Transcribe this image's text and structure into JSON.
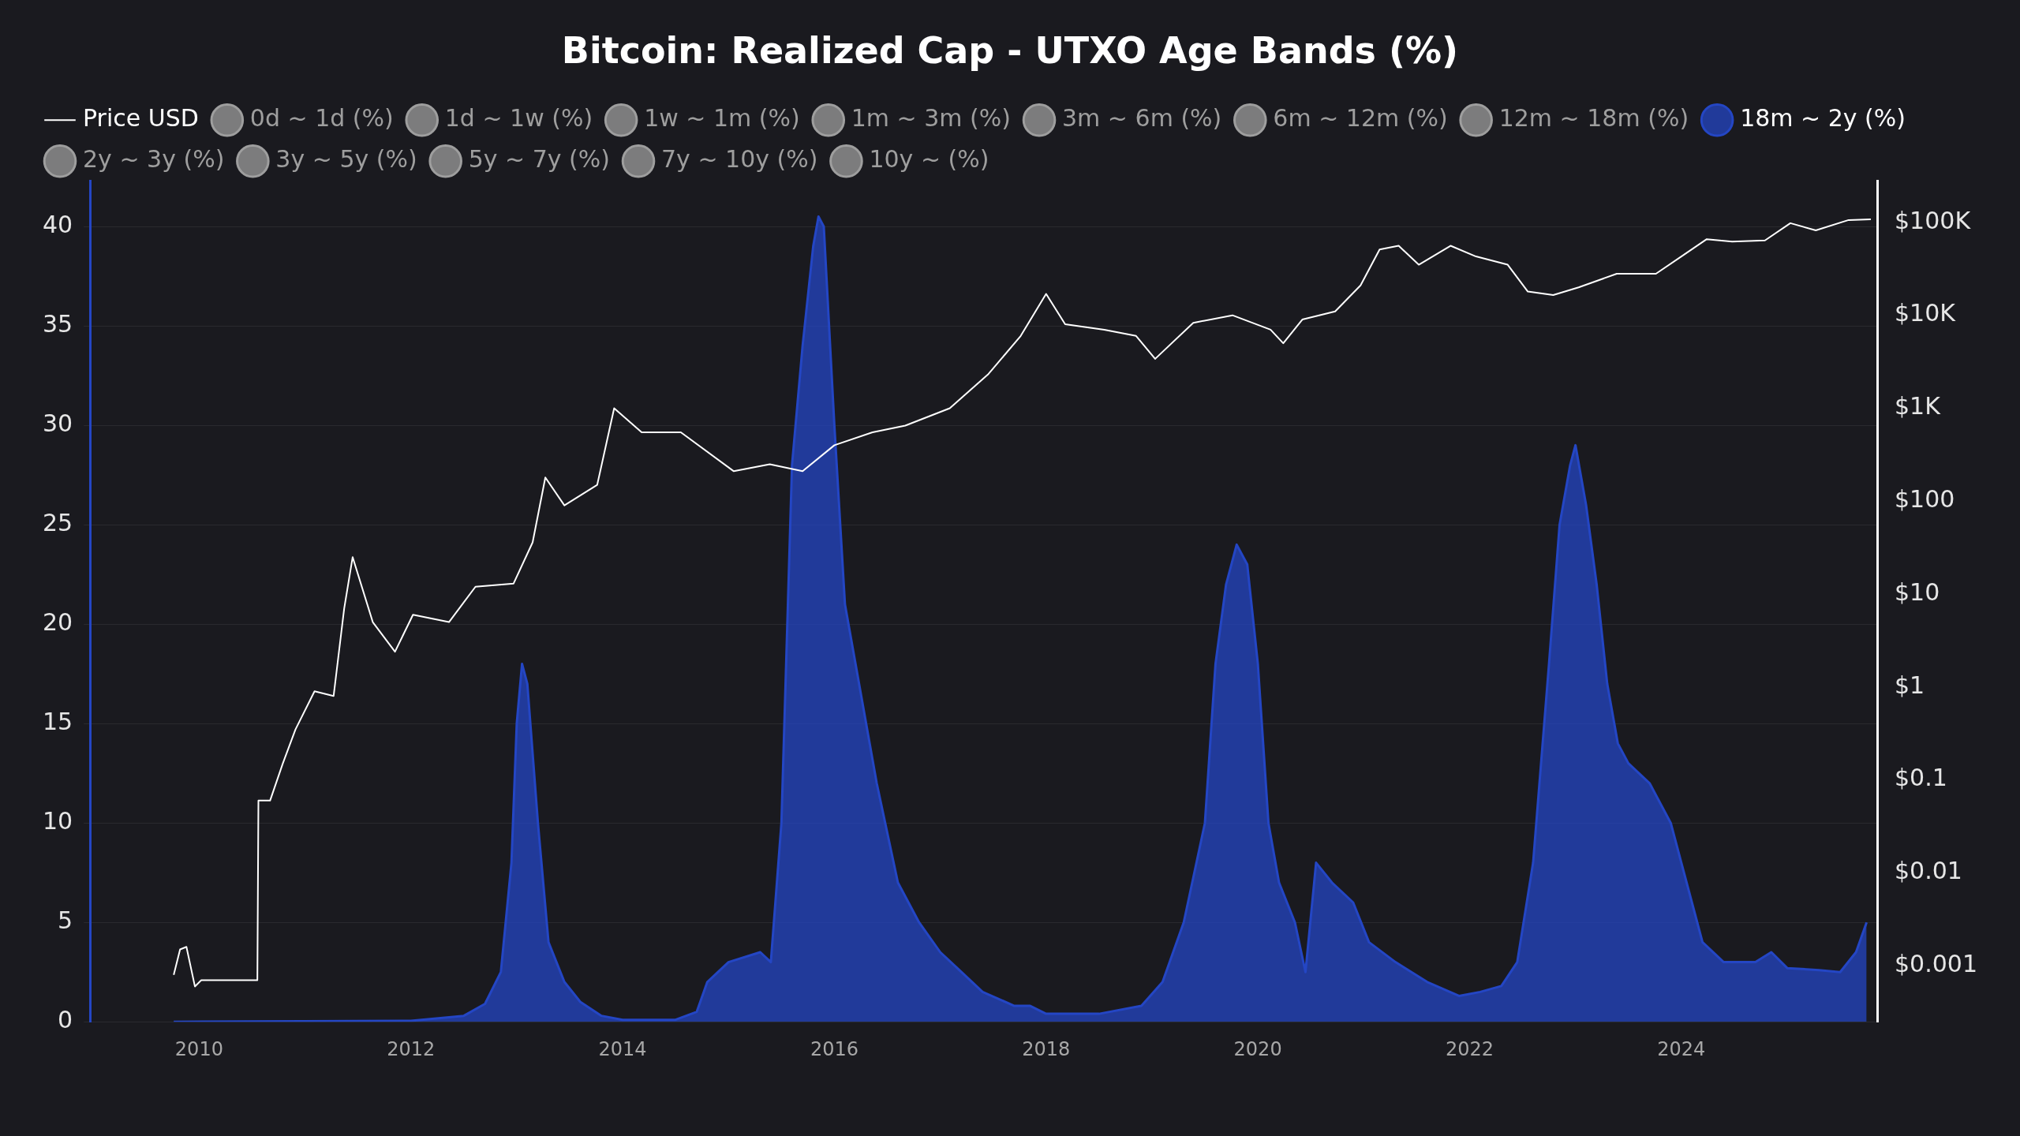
{
  "chart_data": {
    "type": "area",
    "title": "Bitcoin: Realized Cap - UTXO Age Bands (%)",
    "xlim": [
      2008.97,
      2025.85
    ],
    "xticks": [
      2010,
      2012,
      2014,
      2016,
      2018,
      2020,
      2022,
      2024
    ],
    "ylim": [
      0,
      42.3
    ],
    "yticks": [
      0,
      5,
      10,
      15,
      20,
      25,
      30,
      35,
      40
    ],
    "y2lim": [
      0.00025,
      280000
    ],
    "y2ticks": [
      {
        "value": 0.001,
        "label": "$0.001"
      },
      {
        "value": 0.01,
        "label": "$0.01"
      },
      {
        "value": 0.1,
        "label": "$0.1"
      },
      {
        "value": 1,
        "label": "$1"
      },
      {
        "value": 10,
        "label": "$10"
      },
      {
        "value": 100,
        "label": "$100"
      },
      {
        "value": 1000,
        "label": "$1K"
      },
      {
        "value": 10000,
        "label": "$10K"
      },
      {
        "value": 100000,
        "label": "$100K"
      }
    ],
    "log": "y2",
    "grid": "y",
    "legend": "top left",
    "series": [
      {
        "name": "Price USD",
        "type": "line",
        "axis": "y2",
        "color": "#ffffff",
        "x": [
          2009.76,
          2009.82,
          2009.88,
          2009.96,
          2010.02,
          2010.55,
          2010.56,
          2010.67,
          2010.79,
          2010.91,
          2011.09,
          2011.27,
          2011.37,
          2011.45,
          2011.64,
          2011.85,
          2012.02,
          2012.36,
          2012.61,
          2012.97,
          2013.15,
          2013.27,
          2013.45,
          2013.76,
          2013.92,
          2014.18,
          2014.55,
          2015.05,
          2015.39,
          2015.7,
          2016.0,
          2016.36,
          2016.67,
          2017.09,
          2017.45,
          2017.76,
          2018.0,
          2018.18,
          2018.55,
          2018.85,
          2019.03,
          2019.39,
          2019.76,
          2020.12,
          2020.24,
          2020.42,
          2020.73,
          2020.97,
          2021.15,
          2021.33,
          2021.52,
          2021.82,
          2022.06,
          2022.36,
          2022.55,
          2022.79,
          2023.03,
          2023.39,
          2023.76,
          2024.0,
          2024.24,
          2024.48,
          2024.79,
          2025.03,
          2025.27,
          2025.58,
          2025.79
        ],
        "values": [
          0.0008,
          0.0015,
          0.0016,
          0.0006,
          0.0007,
          0.0007,
          0.06,
          0.06,
          0.15,
          0.35,
          0.9,
          0.8,
          7,
          25,
          5,
          2.4,
          6,
          5,
          12,
          13,
          36,
          180,
          90,
          150,
          1000,
          550,
          550,
          210,
          250,
          210,
          400,
          550,
          650,
          1000,
          2300,
          6000,
          17000,
          8000,
          7000,
          6000,
          3400,
          8300,
          10000,
          7000,
          5000,
          9000,
          11000,
          21000,
          51000,
          56000,
          35000,
          56000,
          43000,
          35000,
          18000,
          16500,
          20000,
          28000,
          28000,
          43000,
          66000,
          62000,
          64000,
          98000,
          82000,
          106000,
          108000
        ]
      },
      {
        "name": "0d ~ 1d (%)",
        "color": "#9e9e9e"
      },
      {
        "name": "1d ~ 1w (%)",
        "color": "#9e9e9e"
      },
      {
        "name": "1w ~ 1m (%)",
        "color": "#9e9e9e"
      },
      {
        "name": "1m ~ 3m (%)",
        "color": "#9e9e9e"
      },
      {
        "name": "3m ~ 6m (%)",
        "color": "#9e9e9e"
      },
      {
        "name": "6m ~ 12m (%)",
        "color": "#9e9e9e"
      },
      {
        "name": "12m ~ 18m (%)",
        "color": "#9e9e9e"
      },
      {
        "name": "18m ~ 2y (%)",
        "color": "#2446c4",
        "x": [
          2009.76,
          2012.0,
          2012.5,
          2012.7,
          2012.85,
          2012.95,
          2013.0,
          2013.05,
          2013.1,
          2013.2,
          2013.3,
          2013.45,
          2013.6,
          2013.8,
          2014.0,
          2014.5,
          2014.7,
          2014.8,
          2015.0,
          2015.3,
          2015.4,
          2015.5,
          2015.6,
          2015.7,
          2015.8,
          2015.85,
          2015.9,
          2016.0,
          2016.1,
          2016.2,
          2016.4,
          2016.6,
          2016.8,
          2017.0,
          2017.2,
          2017.4,
          2017.7,
          2017.85,
          2018.0,
          2018.5,
          2018.9,
          2019.1,
          2019.3,
          2019.5,
          2019.6,
          2019.7,
          2019.8,
          2019.9,
          2020.0,
          2020.1,
          2020.2,
          2020.35,
          2020.45,
          2020.55,
          2020.7,
          2020.9,
          2021.05,
          2021.3,
          2021.6,
          2021.9,
          2022.1,
          2022.3,
          2022.45,
          2022.6,
          2022.75,
          2022.85,
          2022.95,
          2023.0,
          2023.1,
          2023.2,
          2023.3,
          2023.4,
          2023.5,
          2023.7,
          2023.9,
          2024.0,
          2024.1,
          2024.2,
          2024.4,
          2024.7,
          2024.85,
          2025.0,
          2025.3,
          2025.5,
          2025.65,
          2025.75
        ],
        "values": [
          0,
          0.05,
          0.3,
          0.9,
          2.5,
          8,
          15,
          18,
          17,
          10,
          4,
          2,
          1,
          0.3,
          0.1,
          0.1,
          0.5,
          2,
          3,
          3.5,
          3,
          10,
          28,
          34,
          39,
          40.5,
          40,
          30,
          21,
          18,
          12,
          7,
          5,
          3.5,
          2.5,
          1.5,
          0.8,
          0.8,
          0.4,
          0.4,
          0.8,
          2,
          5,
          10,
          18,
          22,
          24,
          23,
          18,
          10,
          7,
          5,
          2.5,
          8,
          7,
          6,
          4,
          3,
          2,
          1.3,
          1.5,
          1.8,
          3,
          8,
          18,
          25,
          28,
          29,
          26,
          22,
          17,
          14,
          13,
          12,
          10,
          8,
          6,
          4,
          3,
          3,
          3.5,
          2.7,
          2.6,
          2.5,
          3.5,
          5
        ]
      },
      {
        "name": "2y ~ 3y (%)",
        "color": "#9e9e9e"
      },
      {
        "name": "3y ~ 5y (%)",
        "color": "#9e9e9e"
      },
      {
        "name": "5y ~ 7y (%)",
        "color": "#9e9e9e"
      },
      {
        "name": "7y ~ 10y (%)",
        "color": "#9e9e9e"
      },
      {
        "name": "10y ~ (%)",
        "color": "#9e9e9e"
      }
    ]
  }
}
